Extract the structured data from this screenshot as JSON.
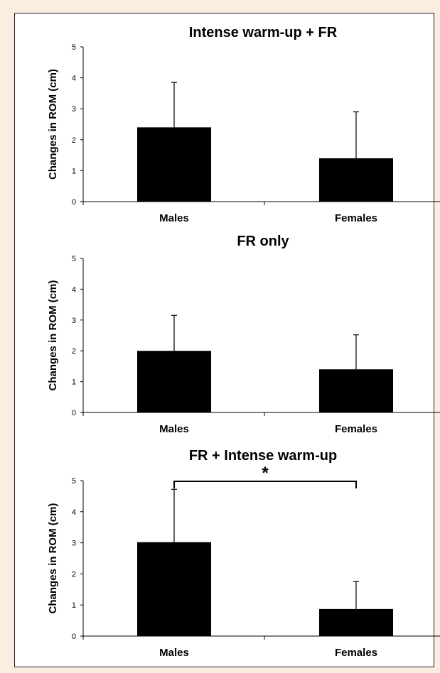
{
  "chart_data": [
    {
      "type": "bar",
      "title": "Intense warm-up + FR",
      "ylabel": "Changes in  ROM (cm)",
      "xlabel": "",
      "categories": [
        "Males",
        "Females"
      ],
      "values": [
        2.4,
        1.4
      ],
      "error_upper": [
        3.85,
        2.9
      ],
      "ylim": [
        0,
        5
      ],
      "yticks": [
        0,
        1,
        2,
        3,
        4,
        5
      ],
      "grid": false,
      "bar_color": "#000000"
    },
    {
      "type": "bar",
      "title": "FR only",
      "ylabel": "Changes in  ROM (cm)",
      "xlabel": "",
      "categories": [
        "Males",
        "Females"
      ],
      "values": [
        2.0,
        1.4
      ],
      "error_upper": [
        3.15,
        2.52
      ],
      "ylim": [
        0,
        5
      ],
      "yticks": [
        0,
        1,
        2,
        3,
        4,
        5
      ],
      "grid": false,
      "bar_color": "#000000"
    },
    {
      "type": "bar",
      "title": "FR + Intense warm-up",
      "ylabel": "Changes in  ROM (cm)",
      "xlabel": "",
      "categories": [
        "Males",
        "Females"
      ],
      "values": [
        3.02,
        0.87
      ],
      "error_upper": [
        4.72,
        1.75
      ],
      "ylim": [
        0,
        5
      ],
      "yticks": [
        0,
        1,
        2,
        3,
        4,
        5
      ],
      "grid": false,
      "bar_color": "#000000",
      "significance": {
        "symbol": "*",
        "between": [
          "Males",
          "Females"
        ]
      }
    }
  ],
  "background": "#fbeee0"
}
